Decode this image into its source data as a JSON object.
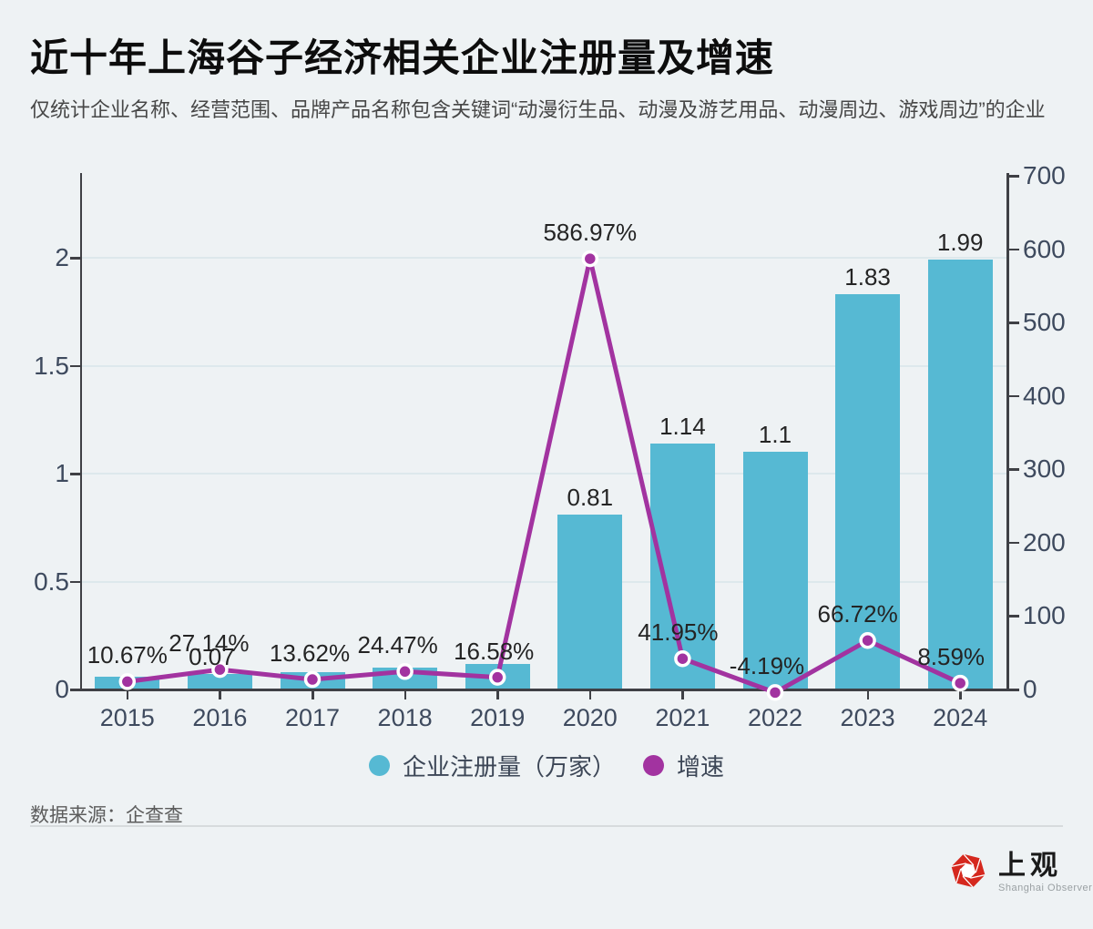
{
  "title": "近十年上海谷子经济相关企业注册量及增速",
  "subtitle": "仅统计企业名称、经营范围、品牌产品名称包含关键词“动漫衍生品、动漫及游艺用品、动漫周边、游戏周边”的企业",
  "source_note": "数据来源：企查查",
  "logo": {
    "name": "上观",
    "tagline": "Shanghai Observer",
    "icon": "red-hexagon-aperture",
    "icon_color": "#d5281e"
  },
  "legend": {
    "items": [
      {
        "label": "企业注册量（万家）",
        "color": "#56b9d3",
        "marker": "circle"
      },
      {
        "label": "增速",
        "color": "#a233a0",
        "marker": "circle"
      }
    ]
  },
  "colors": {
    "background": "#eef2f4",
    "bar": "#56b9d3",
    "line": "#a233a0",
    "dot_ring": "#ffffff",
    "grid": "#dde8ec",
    "axis": "#3f4045",
    "tick_text": "#3e4a5e",
    "value_text": "#242424"
  },
  "chart_data": {
    "type": "bar+line combo",
    "categories": [
      "2015",
      "2016",
      "2017",
      "2018",
      "2019",
      "2020",
      "2021",
      "2022",
      "2023",
      "2024"
    ],
    "series": [
      {
        "name": "企业注册量（万家）",
        "type": "bar",
        "axis": "left",
        "color": "#56b9d3",
        "values": [
          0.06,
          0.07,
          0.08,
          0.1,
          0.12,
          0.81,
          1.14,
          1.1,
          1.83,
          1.99
        ],
        "shown_labels": [
          "",
          "0.07",
          "",
          "",
          "",
          "0.81",
          "1.14",
          "1.1",
          "1.83",
          "1.99"
        ]
      },
      {
        "name": "增速",
        "type": "line",
        "axis": "right",
        "unit": "%",
        "color": "#a233a0",
        "values": [
          10.67,
          27.14,
          13.62,
          24.47,
          16.58,
          586.97,
          41.95,
          -4.19,
          66.72,
          8.59
        ],
        "shown_labels": [
          "10.67%",
          "27.14%",
          "13.62%",
          "24.47%",
          "16.58%",
          "586.97%",
          "41.95%",
          "-4.19%",
          "66.72%",
          "8.59%"
        ]
      }
    ],
    "left_axis": {
      "range": [
        0,
        2.39
      ],
      "tick_values": [
        0,
        0.5,
        1,
        1.5,
        2
      ],
      "tick_labels": [
        "0",
        "0.5",
        "1",
        "1.5",
        "2"
      ]
    },
    "right_axis": {
      "range": [
        0,
        703
      ],
      "tick_values": [
        0,
        100,
        200,
        300,
        400,
        500,
        600,
        700
      ],
      "tick_labels": [
        "0",
        "100",
        "200",
        "300",
        "400",
        "500",
        "600",
        "700"
      ]
    },
    "grid": "horizontal at left-axis ticks",
    "legend_position": "bottom"
  }
}
